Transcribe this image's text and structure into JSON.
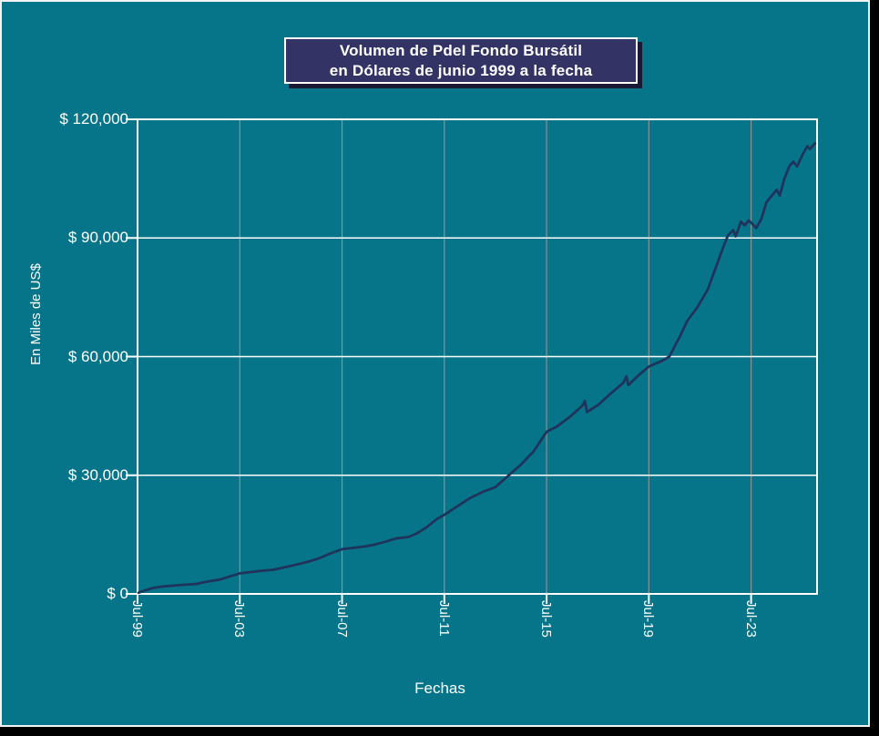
{
  "title": {
    "line1": "Volumen de PdeI Fondo Bursátil",
    "line2": "en Dólares de junio 1999 a la fecha"
  },
  "colors": {
    "background": "#077589",
    "frame": "#000000",
    "title_bg": "#333366",
    "title_shadow": "#191936",
    "text": "#ffffff",
    "grid_horizontal": "#ffffff",
    "grid_vertical": "#909090",
    "axis": "#ffffff",
    "line": "#1f345c"
  },
  "chart_data": {
    "type": "line",
    "title": "Volumen de PdeI Fondo Bursátil en Dólares de junio 1999 a la fecha",
    "xlabel": "Fechas",
    "ylabel": "En Miles de US$",
    "grid": {
      "horizontal": true,
      "vertical": true
    },
    "legend": "none",
    "xlim": [
      1999.5,
      2026.08
    ],
    "ylim": [
      0,
      120000
    ],
    "x_unit": "decimal_year",
    "x_tick_labels": [
      "Jul-99",
      "Jul-03",
      "Jul-07",
      "Jul-11",
      "Jul-15",
      "Jul-19",
      "Jul-23"
    ],
    "x_tick_values": [
      1999.5,
      2003.5,
      2007.5,
      2011.5,
      2015.5,
      2019.5,
      2023.5
    ],
    "y_tick_labels": [
      "$ 0",
      "$ 30,000",
      "$ 60,000",
      "$ 90,000",
      "$ 120,000"
    ],
    "y_tick_values": [
      0,
      30000,
      60000,
      90000,
      120000
    ],
    "series": [
      {
        "name": "Volumen PdeI Fondo Bursátil",
        "color": "#1f345c",
        "points": [
          [
            1999.54,
            300
          ],
          [
            1999.8,
            900
          ],
          [
            2000.1,
            1500
          ],
          [
            2000.5,
            1900
          ],
          [
            2000.9,
            2100
          ],
          [
            2001.3,
            2300
          ],
          [
            2001.8,
            2500
          ],
          [
            2002.0,
            2800
          ],
          [
            2002.3,
            3200
          ],
          [
            2002.7,
            3600
          ],
          [
            2003.1,
            4400
          ],
          [
            2003.5,
            5200
          ],
          [
            2003.9,
            5500
          ],
          [
            2004.3,
            5800
          ],
          [
            2004.8,
            6100
          ],
          [
            2005.1,
            6500
          ],
          [
            2005.5,
            7100
          ],
          [
            2005.9,
            7700
          ],
          [
            2006.2,
            8200
          ],
          [
            2006.6,
            9000
          ],
          [
            2007.0,
            10100
          ],
          [
            2007.5,
            11300
          ],
          [
            2007.9,
            11600
          ],
          [
            2008.4,
            12000
          ],
          [
            2008.8,
            12500
          ],
          [
            2009.2,
            13200
          ],
          [
            2009.6,
            14000
          ],
          [
            2010.1,
            14400
          ],
          [
            2010.4,
            15200
          ],
          [
            2010.8,
            16800
          ],
          [
            2011.2,
            18900
          ],
          [
            2011.5,
            20000
          ],
          [
            2012.0,
            22100
          ],
          [
            2012.5,
            24200
          ],
          [
            2013.0,
            25800
          ],
          [
            2013.5,
            27000
          ],
          [
            2014.0,
            29900
          ],
          [
            2014.5,
            32700
          ],
          [
            2015.0,
            36100
          ],
          [
            2015.5,
            41000
          ],
          [
            2015.9,
            42300
          ],
          [
            2016.4,
            44700
          ],
          [
            2016.9,
            47600
          ],
          [
            2017.0,
            48800
          ],
          [
            2017.08,
            46000
          ],
          [
            2017.5,
            47700
          ],
          [
            2018.0,
            50600
          ],
          [
            2018.5,
            53400
          ],
          [
            2018.62,
            55000
          ],
          [
            2018.7,
            52800
          ],
          [
            2019.1,
            55300
          ],
          [
            2019.5,
            57500
          ],
          [
            2020.0,
            58900
          ],
          [
            2020.3,
            60000
          ],
          [
            2020.7,
            64900
          ],
          [
            2021.0,
            69000
          ],
          [
            2021.4,
            72500
          ],
          [
            2021.8,
            76900
          ],
          [
            2022.1,
            82200
          ],
          [
            2022.4,
            87500
          ],
          [
            2022.6,
            90700
          ],
          [
            2022.8,
            92000
          ],
          [
            2022.9,
            90400
          ],
          [
            2023.1,
            94100
          ],
          [
            2023.25,
            93200
          ],
          [
            2023.4,
            94400
          ],
          [
            2023.5,
            93900
          ],
          [
            2023.7,
            92500
          ],
          [
            2023.9,
            94800
          ],
          [
            2024.1,
            99000
          ],
          [
            2024.3,
            100600
          ],
          [
            2024.5,
            102200
          ],
          [
            2024.62,
            100700
          ],
          [
            2024.8,
            105000
          ],
          [
            2025.0,
            108200
          ],
          [
            2025.15,
            109300
          ],
          [
            2025.3,
            108100
          ],
          [
            2025.5,
            110900
          ],
          [
            2025.7,
            113200
          ],
          [
            2025.8,
            112500
          ],
          [
            2026.0,
            113900
          ]
        ]
      }
    ]
  }
}
